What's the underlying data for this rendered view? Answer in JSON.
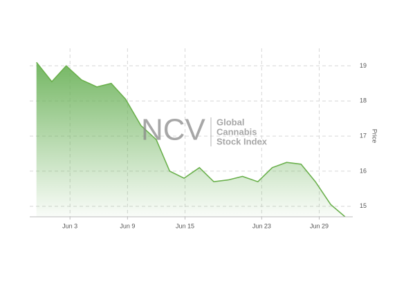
{
  "chart_data": {
    "type": "area",
    "y_axis_label": "Price",
    "watermark": {
      "logo": "NCV",
      "lines": [
        "Global",
        "Cannabis",
        "Stock Index"
      ]
    },
    "x": [
      -0.5,
      1.1,
      2.6,
      4.2,
      5.8,
      7.3,
      8.8,
      10.4,
      12.0,
      13.4,
      14.9,
      16.5,
      18.0,
      19.5,
      21.0,
      22.6,
      24.1,
      25.6,
      27.1,
      28.6,
      30.2,
      31.7
    ],
    "values": [
      19.1,
      18.55,
      19.0,
      18.6,
      18.4,
      18.5,
      18.05,
      17.3,
      16.9,
      16.0,
      15.8,
      16.1,
      15.7,
      15.75,
      15.85,
      15.7,
      16.1,
      16.25,
      16.2,
      15.7,
      15.05,
      14.7
    ],
    "color": "#6ab04c",
    "xlim": [
      -1.2,
      32.5
    ],
    "xticks": [
      {
        "value": 3,
        "label": "Jun 3"
      },
      {
        "value": 9,
        "label": "Jun 9"
      },
      {
        "value": 15,
        "label": "Jun 15"
      },
      {
        "value": 23,
        "label": "Jun 23"
      },
      {
        "value": 29,
        "label": "Jun 29"
      }
    ],
    "ylim": [
      14.7,
      19.5
    ],
    "yticks": [
      15,
      16,
      17,
      18,
      19
    ],
    "y_axis_side": "right",
    "grid": true
  }
}
